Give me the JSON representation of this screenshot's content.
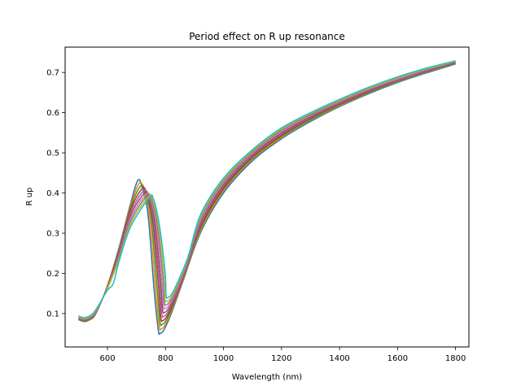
{
  "chart_data": {
    "type": "line",
    "title": "Period effect on R up resonance",
    "xlabel": "Wavelength (nm)",
    "ylabel": "R up",
    "xlim": [
      454,
      1846
    ],
    "ylim": [
      0.017,
      0.763
    ],
    "xticks": [
      600,
      800,
      1000,
      1200,
      1400,
      1600,
      1800
    ],
    "yticks": [
      0.1,
      0.2,
      0.3,
      0.4,
      0.5,
      0.6,
      0.7
    ],
    "grid": false,
    "legend": "none",
    "series": [
      {
        "color": "#1f77b4",
        "points": [
          [
            500,
            0.085
          ],
          [
            520,
            0.08
          ],
          [
            540,
            0.085
          ],
          [
            560,
            0.1
          ],
          [
            600,
            0.17
          ],
          [
            640,
            0.265
          ],
          [
            680,
            0.375
          ],
          [
            705,
            0.432
          ],
          [
            720,
            0.412
          ],
          [
            740,
            0.345
          ],
          [
            760,
            0.165
          ],
          [
            775,
            0.06
          ],
          [
            782,
            0.051
          ],
          [
            795,
            0.06
          ],
          [
            820,
            0.1
          ],
          [
            860,
            0.18
          ],
          [
            920,
            0.3
          ],
          [
            1000,
            0.4
          ],
          [
            1100,
            0.48
          ],
          [
            1200,
            0.535
          ],
          [
            1300,
            0.578
          ],
          [
            1400,
            0.615
          ],
          [
            1500,
            0.647
          ],
          [
            1600,
            0.675
          ],
          [
            1700,
            0.699
          ],
          [
            1800,
            0.721
          ]
        ]
      },
      {
        "color": "#ff7f0e",
        "points": [
          [
            500,
            0.085
          ],
          [
            520,
            0.081
          ],
          [
            540,
            0.086
          ],
          [
            560,
            0.101
          ],
          [
            600,
            0.17
          ],
          [
            640,
            0.262
          ],
          [
            680,
            0.37
          ],
          [
            710,
            0.425
          ],
          [
            725,
            0.407
          ],
          [
            745,
            0.343
          ],
          [
            765,
            0.168
          ],
          [
            778,
            0.07
          ],
          [
            785,
            0.062
          ],
          [
            798,
            0.071
          ],
          [
            822,
            0.108
          ],
          [
            862,
            0.187
          ],
          [
            920,
            0.305
          ],
          [
            1000,
            0.405
          ],
          [
            1100,
            0.484
          ],
          [
            1200,
            0.538
          ],
          [
            1300,
            0.581
          ],
          [
            1400,
            0.617
          ],
          [
            1500,
            0.649
          ],
          [
            1600,
            0.677
          ],
          [
            1700,
            0.701
          ],
          [
            1800,
            0.722
          ]
        ]
      },
      {
        "color": "#2ca02c",
        "points": [
          [
            500,
            0.086
          ],
          [
            520,
            0.082
          ],
          [
            540,
            0.087
          ],
          [
            560,
            0.102
          ],
          [
            600,
            0.168
          ],
          [
            640,
            0.259
          ],
          [
            680,
            0.365
          ],
          [
            715,
            0.418
          ],
          [
            730,
            0.402
          ],
          [
            750,
            0.34
          ],
          [
            770,
            0.172
          ],
          [
            781,
            0.08
          ],
          [
            788,
            0.073
          ],
          [
            801,
            0.082
          ],
          [
            824,
            0.116
          ],
          [
            864,
            0.194
          ],
          [
            920,
            0.31
          ],
          [
            1000,
            0.409
          ],
          [
            1100,
            0.487
          ],
          [
            1200,
            0.541
          ],
          [
            1300,
            0.583
          ],
          [
            1400,
            0.619
          ],
          [
            1500,
            0.65
          ],
          [
            1600,
            0.678
          ],
          [
            1700,
            0.702
          ],
          [
            1800,
            0.723
          ]
        ]
      },
      {
        "color": "#d62728",
        "points": [
          [
            500,
            0.087
          ],
          [
            520,
            0.083
          ],
          [
            540,
            0.088
          ],
          [
            560,
            0.103
          ],
          [
            600,
            0.167
          ],
          [
            640,
            0.255
          ],
          [
            680,
            0.359
          ],
          [
            720,
            0.411
          ],
          [
            735,
            0.398
          ],
          [
            755,
            0.337
          ],
          [
            775,
            0.176
          ],
          [
            784,
            0.09
          ],
          [
            791,
            0.083
          ],
          [
            804,
            0.092
          ],
          [
            826,
            0.124
          ],
          [
            866,
            0.2
          ],
          [
            920,
            0.315
          ],
          [
            1000,
            0.413
          ],
          [
            1100,
            0.49
          ],
          [
            1200,
            0.544
          ],
          [
            1300,
            0.586
          ],
          [
            1400,
            0.621
          ],
          [
            1500,
            0.652
          ],
          [
            1600,
            0.68
          ],
          [
            1700,
            0.703
          ],
          [
            1800,
            0.724
          ]
        ]
      },
      {
        "color": "#9467bd",
        "points": [
          [
            500,
            0.088
          ],
          [
            520,
            0.084
          ],
          [
            540,
            0.089
          ],
          [
            560,
            0.104
          ],
          [
            600,
            0.166
          ],
          [
            640,
            0.251
          ],
          [
            680,
            0.352
          ],
          [
            724,
            0.405
          ],
          [
            739,
            0.394
          ],
          [
            759,
            0.334
          ],
          [
            779,
            0.18
          ],
          [
            787,
            0.1
          ],
          [
            794,
            0.093
          ],
          [
            807,
            0.102
          ],
          [
            828,
            0.132
          ],
          [
            868,
            0.207
          ],
          [
            920,
            0.32
          ],
          [
            1000,
            0.417
          ],
          [
            1100,
            0.493
          ],
          [
            1200,
            0.547
          ],
          [
            1300,
            0.588
          ],
          [
            1400,
            0.623
          ],
          [
            1500,
            0.654
          ],
          [
            1600,
            0.681
          ],
          [
            1700,
            0.704
          ],
          [
            1800,
            0.725
          ]
        ]
      },
      {
        "color": "#8c564b",
        "points": [
          [
            500,
            0.089
          ],
          [
            520,
            0.085
          ],
          [
            540,
            0.09
          ],
          [
            560,
            0.105
          ],
          [
            600,
            0.165
          ],
          [
            640,
            0.247
          ],
          [
            680,
            0.345
          ],
          [
            728,
            0.4
          ],
          [
            743,
            0.391
          ],
          [
            763,
            0.331
          ],
          [
            783,
            0.184
          ],
          [
            790,
            0.11
          ],
          [
            797,
            0.103
          ],
          [
            810,
            0.112
          ],
          [
            830,
            0.14
          ],
          [
            870,
            0.214
          ],
          [
            920,
            0.325
          ],
          [
            1000,
            0.421
          ],
          [
            1100,
            0.496
          ],
          [
            1200,
            0.55
          ],
          [
            1300,
            0.59
          ],
          [
            1400,
            0.625
          ],
          [
            1500,
            0.656
          ],
          [
            1600,
            0.683
          ],
          [
            1700,
            0.706
          ],
          [
            1800,
            0.726
          ]
        ]
      },
      {
        "color": "#e377c2",
        "points": [
          [
            500,
            0.09
          ],
          [
            520,
            0.086
          ],
          [
            540,
            0.091
          ],
          [
            560,
            0.106
          ],
          [
            600,
            0.164
          ],
          [
            640,
            0.243
          ],
          [
            680,
            0.338
          ],
          [
            732,
            0.396
          ],
          [
            747,
            0.388
          ],
          [
            767,
            0.328
          ],
          [
            787,
            0.188
          ],
          [
            793,
            0.12
          ],
          [
            800,
            0.113
          ],
          [
            813,
            0.122
          ],
          [
            832,
            0.148
          ],
          [
            872,
            0.221
          ],
          [
            920,
            0.33
          ],
          [
            1000,
            0.425
          ],
          [
            1100,
            0.499
          ],
          [
            1200,
            0.553
          ],
          [
            1300,
            0.593
          ],
          [
            1400,
            0.627
          ],
          [
            1500,
            0.658
          ],
          [
            1600,
            0.684
          ],
          [
            1700,
            0.707
          ],
          [
            1800,
            0.727
          ]
        ]
      },
      {
        "color": "#7f7f7f",
        "points": [
          [
            500,
            0.091
          ],
          [
            520,
            0.087
          ],
          [
            540,
            0.092
          ],
          [
            560,
            0.107
          ],
          [
            600,
            0.163
          ],
          [
            640,
            0.239
          ],
          [
            680,
            0.331
          ],
          [
            736,
            0.393
          ],
          [
            751,
            0.386
          ],
          [
            771,
            0.325
          ],
          [
            791,
            0.192
          ],
          [
            796,
            0.128
          ],
          [
            803,
            0.122
          ],
          [
            816,
            0.131
          ],
          [
            834,
            0.156
          ],
          [
            874,
            0.228
          ],
          [
            920,
            0.335
          ],
          [
            1000,
            0.429
          ],
          [
            1100,
            0.502
          ],
          [
            1200,
            0.556
          ],
          [
            1300,
            0.595
          ],
          [
            1400,
            0.629
          ],
          [
            1500,
            0.66
          ],
          [
            1600,
            0.686
          ],
          [
            1700,
            0.708
          ],
          [
            1800,
            0.727
          ]
        ]
      },
      {
        "color": "#bcbd22",
        "points": [
          [
            500,
            0.092
          ],
          [
            520,
            0.088
          ],
          [
            540,
            0.093
          ],
          [
            560,
            0.108
          ],
          [
            600,
            0.162
          ],
          [
            640,
            0.235
          ],
          [
            680,
            0.324
          ],
          [
            740,
            0.39
          ],
          [
            755,
            0.385
          ],
          [
            775,
            0.322
          ],
          [
            795,
            0.196
          ],
          [
            799,
            0.136
          ],
          [
            806,
            0.131
          ],
          [
            819,
            0.14
          ],
          [
            836,
            0.164
          ],
          [
            876,
            0.235
          ],
          [
            920,
            0.34
          ],
          [
            1000,
            0.433
          ],
          [
            1100,
            0.505
          ],
          [
            1200,
            0.559
          ],
          [
            1300,
            0.598
          ],
          [
            1400,
            0.631
          ],
          [
            1500,
            0.661
          ],
          [
            1600,
            0.687
          ],
          [
            1700,
            0.709
          ],
          [
            1800,
            0.728
          ]
        ]
      },
      {
        "color": "#17becf",
        "points": [
          [
            500,
            0.094
          ],
          [
            520,
            0.09
          ],
          [
            540,
            0.095
          ],
          [
            560,
            0.11
          ],
          [
            600,
            0.158
          ],
          [
            620,
            0.175
          ],
          [
            640,
            0.23
          ],
          [
            680,
            0.316
          ],
          [
            744,
            0.388
          ],
          [
            759,
            0.384
          ],
          [
            779,
            0.32
          ],
          [
            799,
            0.2
          ],
          [
            802,
            0.145
          ],
          [
            809,
            0.14
          ],
          [
            822,
            0.149
          ],
          [
            838,
            0.172
          ],
          [
            878,
            0.242
          ],
          [
            920,
            0.345
          ],
          [
            1000,
            0.437
          ],
          [
            1100,
            0.508
          ],
          [
            1200,
            0.562
          ],
          [
            1300,
            0.6
          ],
          [
            1400,
            0.633
          ],
          [
            1500,
            0.663
          ],
          [
            1600,
            0.689
          ],
          [
            1700,
            0.711
          ],
          [
            1800,
            0.729
          ]
        ]
      }
    ]
  }
}
